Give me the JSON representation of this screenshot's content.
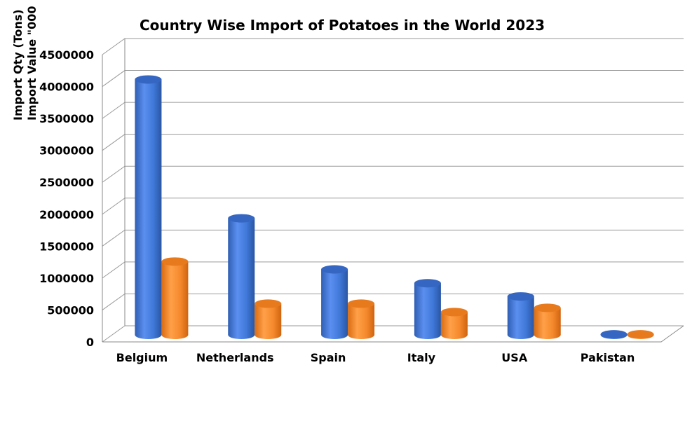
{
  "chart_data": {
    "type": "bar",
    "title": "Country Wise Import of Potatoes in the World 2023",
    "ylabel_lines": [
      "Import Qty (Tons)",
      "Import Value \"000"
    ],
    "xlabel": "",
    "categories": [
      "Belgium",
      "Netherlands",
      "Spain",
      "Italy",
      "USA",
      "Pakistan"
    ],
    "series": [
      {
        "values": [
          4250000,
          1940000,
          1090000,
          860000,
          640000,
          10000
        ]
      },
      {
        "values": [
          1220000,
          520000,
          520000,
          380000,
          450000,
          10000
        ]
      }
    ],
    "ylim": [
      0,
      4500000
    ],
    "yticks": [
      "0",
      "500000",
      "1000000",
      "1500000",
      "2000000",
      "2500000",
      "3000000",
      "3500000",
      "4000000",
      "4500000"
    ],
    "grid": true,
    "legend": "none",
    "style": "3d-cylinder",
    "colors": [
      "#3f78d8",
      "#f5892c"
    ]
  }
}
